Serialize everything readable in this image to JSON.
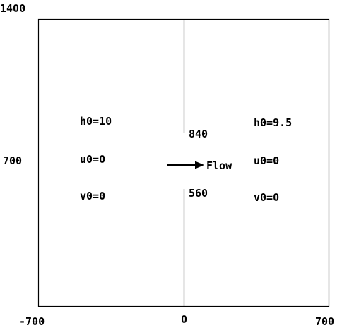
{
  "axis": {
    "y_top": "1400",
    "y_mid": "700",
    "x_left": "-700",
    "x_mid": "0",
    "x_right": "700"
  },
  "left_region": {
    "h0": "h0=10",
    "u0": "u0=0",
    "v0": "v0=0"
  },
  "right_region": {
    "h0": "h0=9.5",
    "u0": "u0=0",
    "v0": "v0=0"
  },
  "breach": {
    "upper_label": "840",
    "lower_label": "560",
    "flow_label": "Flow"
  },
  "colors": {
    "line": "#000000",
    "background": "#ffffff"
  }
}
